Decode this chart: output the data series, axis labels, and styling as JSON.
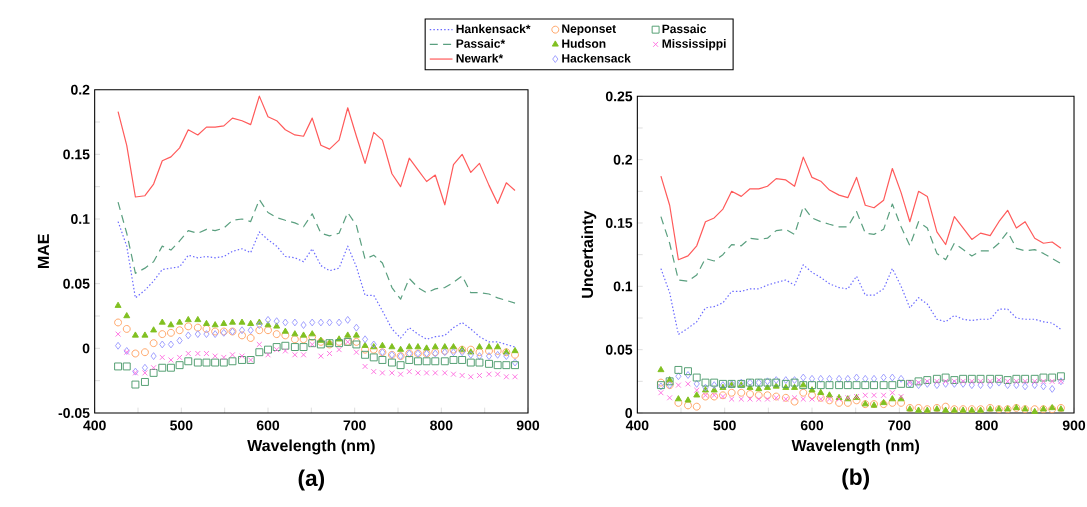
{
  "chart_data": [
    {
      "type": "line",
      "xlabel": "Wavelength (nm)",
      "ylabel": "MAE",
      "annotations": [
        "(a)"
      ],
      "legend": "top",
      "x": [
        427,
        437,
        447,
        458,
        468,
        478,
        488,
        498,
        508,
        519,
        529,
        539,
        549,
        559,
        570,
        580,
        590,
        600,
        610,
        620,
        631,
        641,
        651,
        661,
        671,
        682,
        692,
        702,
        712,
        722,
        732,
        743,
        753,
        763,
        773,
        783,
        793,
        804,
        814,
        824,
        834,
        844,
        855,
        865,
        875,
        885
      ],
      "xlim": [
        400,
        900
      ],
      "ylim": [
        -0.05,
        0.2
      ],
      "xticks": [
        400,
        {
          "value": 450,
          "label": null
        },
        500,
        {
          "value": 550,
          "label": null
        },
        600,
        {
          "value": 650,
          "label": null
        },
        700,
        {
          "value": 750,
          "label": null
        },
        800,
        {
          "value": 850,
          "label": null
        },
        900
      ],
      "yticks": [
        -0.05,
        {
          "value": -0.025,
          "label": null
        },
        0,
        {
          "value": 0.025,
          "label": null
        },
        0.05,
        {
          "value": 0.075,
          "label": null
        },
        0.1,
        {
          "value": 0.125,
          "label": null
        },
        0.15,
        {
          "value": 0.175,
          "label": null
        },
        0.2
      ],
      "series": [
        {
          "name": "Hankensack*",
          "type": "line",
          "line_style": "dotted",
          "color": "#6a6aff",
          "values": [
            0.098,
            0.079,
            0.039,
            0.045,
            0.052,
            0.061,
            0.062,
            0.063,
            0.072,
            0.07,
            0.071,
            0.07,
            0.071,
            0.075,
            0.077,
            0.074,
            0.09,
            0.084,
            0.079,
            0.071,
            0.07,
            0.067,
            0.077,
            0.064,
            0.06,
            0.062,
            0.079,
            0.063,
            0.041,
            0.041,
            0.029,
            0.015,
            0.008,
            0.016,
            0.011,
            0.007,
            0.009,
            0.01,
            0.016,
            0.02,
            0.015,
            0.009,
            0.005,
            0.005,
            0.003,
            0.001
          ]
        },
        {
          "name": "Passaic*",
          "type": "line",
          "line_style": "dashed",
          "color": "#5a9f7f",
          "values": [
            0.113,
            0.089,
            0.058,
            0.062,
            0.067,
            0.079,
            0.076,
            0.083,
            0.091,
            0.089,
            0.092,
            0.091,
            0.093,
            0.099,
            0.1,
            0.098,
            0.115,
            0.105,
            0.101,
            0.099,
            0.097,
            0.094,
            0.104,
            0.089,
            0.087,
            0.089,
            0.105,
            0.095,
            0.069,
            0.072,
            0.066,
            0.047,
            0.038,
            0.054,
            0.047,
            0.043,
            0.046,
            0.047,
            0.051,
            0.056,
            0.043,
            0.043,
            0.042,
            0.039,
            0.037,
            0.035
          ]
        },
        {
          "name": "Newark*",
          "type": "line",
          "line_style": "solid",
          "color": "#ff5a5a",
          "values": [
            0.183,
            0.157,
            0.117,
            0.118,
            0.127,
            0.145,
            0.148,
            0.155,
            0.169,
            0.165,
            0.171,
            0.171,
            0.172,
            0.178,
            0.176,
            0.173,
            0.195,
            0.179,
            0.176,
            0.169,
            0.165,
            0.164,
            0.178,
            0.157,
            0.154,
            0.161,
            0.186,
            0.164,
            0.143,
            0.167,
            0.161,
            0.135,
            0.125,
            0.147,
            0.138,
            0.129,
            0.134,
            0.111,
            0.142,
            0.15,
            0.136,
            0.143,
            0.126,
            0.112,
            0.128,
            0.122
          ]
        },
        {
          "name": "Neponset",
          "type": "scatter",
          "marker": "circle",
          "color": "#ffa060",
          "values": [
            0.02,
            0.015,
            -0.004,
            -0.003,
            0.004,
            0.011,
            0.012,
            0.014,
            0.017,
            0.016,
            0.015,
            0.013,
            0.013,
            0.013,
            0.01,
            0.008,
            0.014,
            0.014,
            0.011,
            0.01,
            0.007,
            0.007,
            0.009,
            0.005,
            0.003,
            0.005,
            0.005,
            0.005,
            -0.001,
            -0.001,
            -0.003,
            -0.005,
            -0.006,
            -0.004,
            -0.004,
            -0.004,
            -0.003,
            -0.002,
            -0.001,
            -0.001,
            -0.001,
            -0.003,
            -0.002,
            -0.002,
            -0.003,
            -0.005
          ]
        },
        {
          "name": "Hudson",
          "type": "scatter",
          "marker": "triangle",
          "color": "#80c020",
          "values": [
            0.033,
            0.025,
            0.01,
            0.01,
            0.014,
            0.02,
            0.018,
            0.02,
            0.022,
            0.022,
            0.019,
            0.018,
            0.019,
            0.02,
            0.02,
            0.019,
            0.02,
            0.018,
            0.017,
            0.013,
            0.011,
            0.01,
            0.011,
            0.006,
            0.004,
            0.007,
            0.01,
            0.01,
            0.002,
            0.001,
            0.002,
            0.001,
            -0.001,
            0.001,
            0.001,
            0.0,
            0.001,
            0.001,
            0.001,
            -0.001,
            -0.003,
            0.001,
            0.001,
            0.001,
            -0.003,
            -0.002
          ]
        },
        {
          "name": "Hackensack",
          "type": "scatter",
          "marker": "diamond",
          "color": "#9a9aff",
          "values": [
            0.002,
            -0.002,
            -0.018,
            -0.015,
            -0.006,
            0.003,
            0.003,
            0.006,
            0.01,
            0.011,
            0.011,
            0.011,
            0.012,
            0.013,
            0.014,
            0.014,
            0.018,
            0.022,
            0.021,
            0.02,
            0.02,
            0.018,
            0.02,
            0.02,
            0.02,
            0.02,
            0.022,
            0.016,
            0.007,
            0.003,
            -0.003,
            -0.005,
            -0.006,
            -0.004,
            -0.004,
            -0.004,
            -0.004,
            -0.003,
            -0.003,
            -0.003,
            -0.005,
            -0.006,
            -0.006,
            -0.005,
            -0.006,
            -0.011
          ]
        },
        {
          "name": "Passaic",
          "type": "scatter",
          "marker": "square",
          "color": "#4a9a6a",
          "values": [
            -0.014,
            -0.014,
            -0.028,
            -0.026,
            -0.019,
            -0.015,
            -0.015,
            -0.013,
            -0.01,
            -0.011,
            -0.011,
            -0.011,
            -0.011,
            -0.01,
            -0.009,
            -0.009,
            -0.003,
            -0.001,
            0.001,
            0.002,
            0.001,
            0.001,
            0.004,
            0.003,
            0.004,
            0.004,
            0.005,
            0.003,
            -0.005,
            -0.007,
            -0.009,
            -0.011,
            -0.013,
            -0.009,
            -0.01,
            -0.01,
            -0.01,
            -0.01,
            -0.009,
            -0.009,
            -0.011,
            -0.011,
            -0.012,
            -0.013,
            -0.013,
            -0.013
          ]
        },
        {
          "name": "Mississippi",
          "type": "scatter",
          "marker": "cross",
          "color": "#ff70e0",
          "values": [
            0.011,
            -0.003,
            -0.019,
            -0.019,
            -0.015,
            -0.007,
            -0.009,
            -0.007,
            -0.004,
            -0.004,
            -0.004,
            -0.006,
            -0.007,
            -0.005,
            -0.006,
            -0.009,
            0.003,
            -0.005,
            -0.001,
            -0.002,
            -0.005,
            -0.005,
            0.003,
            -0.006,
            -0.004,
            -0.001,
            0.005,
            -0.003,
            -0.014,
            -0.018,
            -0.019,
            -0.019,
            -0.02,
            -0.018,
            -0.019,
            -0.019,
            -0.019,
            -0.019,
            -0.02,
            -0.021,
            -0.022,
            -0.021,
            -0.02,
            -0.02,
            -0.022,
            -0.022
          ]
        }
      ]
    },
    {
      "type": "line",
      "xlabel": "Wavelength (nm)",
      "ylabel": "Uncertainty",
      "annotations": [
        "(b)"
      ],
      "x": [
        427,
        437,
        447,
        458,
        468,
        478,
        488,
        498,
        508,
        519,
        529,
        539,
        549,
        559,
        570,
        580,
        590,
        600,
        610,
        620,
        631,
        641,
        651,
        661,
        671,
        682,
        692,
        702,
        712,
        722,
        732,
        743,
        753,
        763,
        773,
        783,
        793,
        804,
        814,
        824,
        834,
        844,
        855,
        865,
        875,
        885
      ],
      "xlim": [
        400,
        900
      ],
      "ylim": [
        0,
        0.25
      ],
      "xticks": [
        400,
        {
          "value": 450,
          "label": null
        },
        500,
        {
          "value": 550,
          "label": null
        },
        600,
        {
          "value": 650,
          "label": null
        },
        700,
        {
          "value": 750,
          "label": null
        },
        800,
        {
          "value": 850,
          "label": null
        },
        900
      ],
      "yticks": [
        0,
        {
          "value": 0.025,
          "label": null
        },
        0.05,
        {
          "value": 0.075,
          "label": null
        },
        0.1,
        {
          "value": 0.125,
          "label": null
        },
        0.15,
        {
          "value": 0.175,
          "label": null
        },
        0.2,
        {
          "value": 0.225,
          "label": null
        },
        0.25
      ],
      "series": [
        {
          "type": "line",
          "line_style": "dotted",
          "color": "#6a6aff",
          "values": [
            0.114,
            0.095,
            0.062,
            0.067,
            0.072,
            0.083,
            0.084,
            0.087,
            0.096,
            0.096,
            0.098,
            0.098,
            0.101,
            0.103,
            0.105,
            0.101,
            0.117,
            0.111,
            0.107,
            0.102,
            0.099,
            0.098,
            0.108,
            0.093,
            0.093,
            0.098,
            0.114,
            0.1,
            0.083,
            0.091,
            0.086,
            0.074,
            0.072,
            0.077,
            0.074,
            0.073,
            0.074,
            0.074,
            0.082,
            0.082,
            0.075,
            0.074,
            0.074,
            0.072,
            0.071,
            0.066
          ]
        },
        {
          "type": "line",
          "line_style": "dashed",
          "color": "#5a9f7f",
          "values": [
            0.155,
            0.134,
            0.105,
            0.104,
            0.109,
            0.122,
            0.12,
            0.125,
            0.133,
            0.132,
            0.138,
            0.137,
            0.138,
            0.144,
            0.145,
            0.141,
            0.163,
            0.154,
            0.151,
            0.149,
            0.147,
            0.147,
            0.159,
            0.142,
            0.141,
            0.145,
            0.165,
            0.147,
            0.132,
            0.151,
            0.146,
            0.126,
            0.121,
            0.134,
            0.129,
            0.124,
            0.128,
            0.128,
            0.134,
            0.143,
            0.13,
            0.128,
            0.129,
            0.126,
            0.122,
            0.118
          ]
        },
        {
          "type": "line",
          "line_style": "solid",
          "color": "#ff5a5a",
          "values": [
            0.187,
            0.164,
            0.121,
            0.124,
            0.132,
            0.151,
            0.154,
            0.161,
            0.175,
            0.171,
            0.177,
            0.177,
            0.179,
            0.185,
            0.184,
            0.179,
            0.202,
            0.186,
            0.183,
            0.176,
            0.172,
            0.17,
            0.186,
            0.164,
            0.162,
            0.168,
            0.193,
            0.174,
            0.151,
            0.175,
            0.171,
            0.143,
            0.133,
            0.155,
            0.146,
            0.137,
            0.142,
            0.14,
            0.151,
            0.16,
            0.146,
            0.151,
            0.138,
            0.134,
            0.135,
            0.13
          ]
        },
        {
          "type": "scatter",
          "marker": "circle",
          "color": "#ffa060",
          "values": [
            0.024,
            0.022,
            0.008,
            0.006,
            0.005,
            0.013,
            0.013,
            0.014,
            0.016,
            0.016,
            0.015,
            0.014,
            0.014,
            0.013,
            0.012,
            0.009,
            0.016,
            0.014,
            0.012,
            0.01,
            0.008,
            0.008,
            0.01,
            0.007,
            0.007,
            0.007,
            0.008,
            0.008,
            0.004,
            0.004,
            0.003,
            0.004,
            0.005,
            0.003,
            0.003,
            0.003,
            0.003,
            0.004,
            0.003,
            0.003,
            0.004,
            0.003,
            0.003,
            0.003,
            0.003,
            0.004
          ]
        },
        {
          "type": "scatter",
          "marker": "triangle",
          "color": "#80c020",
          "values": [
            0.034,
            0.026,
            0.011,
            0.01,
            0.014,
            0.018,
            0.018,
            0.02,
            0.022,
            0.022,
            0.02,
            0.019,
            0.02,
            0.021,
            0.02,
            0.02,
            0.022,
            0.018,
            0.016,
            0.014,
            0.012,
            0.011,
            0.012,
            0.007,
            0.006,
            0.008,
            0.011,
            0.011,
            0.003,
            0.002,
            0.002,
            0.003,
            0.002,
            0.002,
            0.002,
            0.002,
            0.002,
            0.003,
            0.003,
            0.003,
            0.004,
            0.003,
            0.001,
            0.003,
            0.004,
            0.003
          ]
        },
        {
          "type": "scatter",
          "marker": "diamond",
          "color": "#9a9aff",
          "values": [
            0.021,
            0.022,
            0.029,
            0.03,
            0.023,
            0.02,
            0.022,
            0.022,
            0.023,
            0.024,
            0.024,
            0.024,
            0.025,
            0.026,
            0.026,
            0.026,
            0.028,
            0.027,
            0.027,
            0.027,
            0.027,
            0.027,
            0.028,
            0.027,
            0.027,
            0.028,
            0.028,
            0.027,
            0.023,
            0.022,
            0.023,
            0.022,
            0.023,
            0.023,
            0.023,
            0.022,
            0.022,
            0.022,
            0.024,
            0.022,
            0.022,
            0.021,
            0.022,
            0.021,
            0.019,
            0.025
          ]
        },
        {
          "type": "scatter",
          "marker": "square",
          "color": "#4a9a6a",
          "values": [
            0.022,
            0.025,
            0.034,
            0.033,
            0.028,
            0.024,
            0.024,
            0.023,
            0.023,
            0.023,
            0.024,
            0.024,
            0.024,
            0.024,
            0.023,
            0.024,
            0.022,
            0.022,
            0.022,
            0.022,
            0.022,
            0.022,
            0.022,
            0.022,
            0.022,
            0.022,
            0.022,
            0.023,
            0.023,
            0.025,
            0.026,
            0.027,
            0.028,
            0.026,
            0.027,
            0.027,
            0.027,
            0.027,
            0.027,
            0.026,
            0.027,
            0.027,
            0.027,
            0.028,
            0.028,
            0.029
          ]
        },
        {
          "type": "scatter",
          "marker": "cross",
          "color": "#ff70e0",
          "values": [
            0.016,
            0.012,
            0.022,
            0.023,
            0.018,
            0.014,
            0.014,
            0.013,
            0.011,
            0.011,
            0.011,
            0.011,
            0.011,
            0.012,
            0.011,
            0.012,
            0.011,
            0.011,
            0.011,
            0.011,
            0.011,
            0.012,
            0.013,
            0.014,
            0.014,
            0.014,
            0.016,
            0.013,
            0.024,
            0.024,
            0.025,
            0.025,
            0.025,
            0.025,
            0.025,
            0.025,
            0.025,
            0.025,
            0.026,
            0.025,
            0.025,
            0.025,
            0.025,
            0.025,
            0.025,
            0.025
          ]
        }
      ]
    }
  ]
}
